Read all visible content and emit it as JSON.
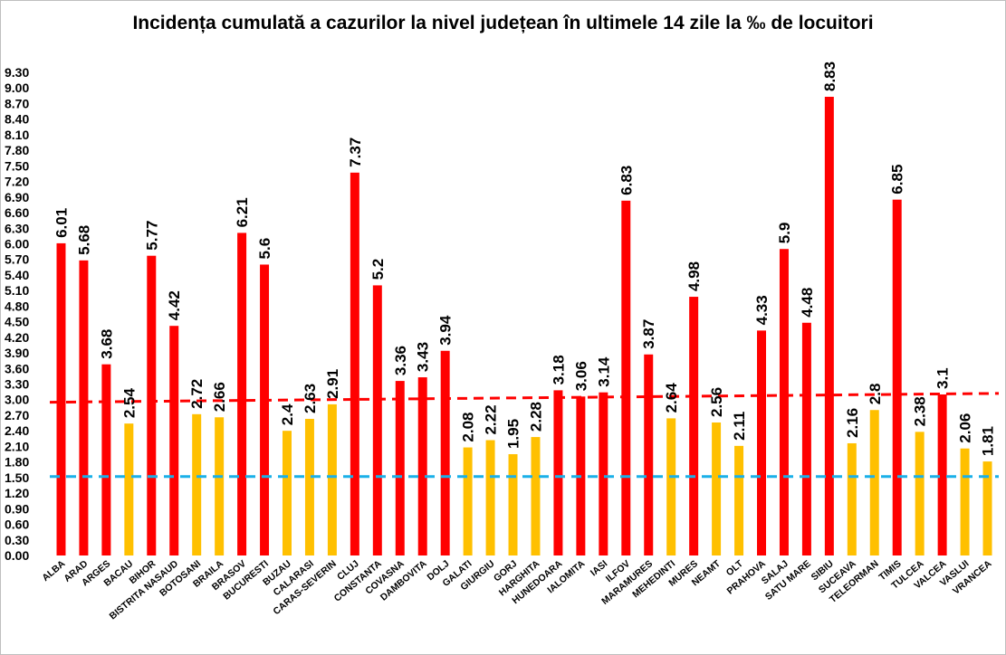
{
  "chart_data": {
    "type": "bar",
    "title": "Incidența cumulată a cazurilor la nivel județean în ultimele 14 zile la ‰ de locuitori",
    "xlabel": "",
    "ylabel": "",
    "ylim": [
      0,
      9.3
    ],
    "ytick_step": 0.3,
    "ytick_labels": [
      "0.00",
      "0.30",
      "0.60",
      "0.90",
      "1.20",
      "1.50",
      "1.80",
      "2.10",
      "2.40",
      "2.70",
      "3.00",
      "3.30",
      "3.60",
      "3.90",
      "4.20",
      "4.50",
      "4.80",
      "5.10",
      "5.40",
      "5.70",
      "6.00",
      "6.30",
      "6.60",
      "6.90",
      "7.20",
      "7.50",
      "7.80",
      "8.10",
      "8.40",
      "8.70",
      "9.00",
      "9.30"
    ],
    "grid": false,
    "legend": "none",
    "categories": [
      "ALBA",
      "ARAD",
      "ARGES",
      "BACAU",
      "BIHOR",
      "BISTRITA NASAUD",
      "BOTOSANI",
      "BRAILA",
      "BRASOV",
      "BUCURESTI",
      "BUZAU",
      "CALARASI",
      "CARAS-SEVERIN",
      "CLUJ",
      "CONSTANTA",
      "COVASNA",
      "DAMBOVITA",
      "DOLJ",
      "GALATI",
      "GIURGIU",
      "GORJ",
      "HARGHITA",
      "HUNEDOARA",
      "IALOMITA",
      "IASI",
      "ILFOV",
      "MARAMURES",
      "MEHEDINTI",
      "MURES",
      "NEAMT",
      "OLT",
      "PRAHOVA",
      "SALAJ",
      "SATU MARE",
      "SIBIU",
      "SUCEAVA",
      "TELEORMAN",
      "TIMIS",
      "TULCEA",
      "VALCEA",
      "VASLUI",
      "VRANCEA"
    ],
    "values": [
      6.01,
      5.68,
      3.68,
      2.54,
      5.77,
      4.42,
      2.72,
      2.66,
      6.21,
      5.6,
      2.4,
      2.63,
      2.91,
      7.37,
      5.2,
      3.36,
      3.43,
      3.94,
      2.08,
      2.22,
      1.95,
      2.28,
      3.18,
      3.06,
      3.14,
      6.83,
      3.87,
      2.64,
      4.98,
      2.56,
      2.11,
      4.33,
      5.9,
      4.48,
      8.83,
      2.16,
      2.8,
      6.85,
      2.38,
      3.1,
      2.06,
      1.81
    ],
    "data_labels": [
      "6.01",
      "5.68",
      "3.68",
      "2.54",
      "5.77",
      "4.42",
      "2.72",
      "2.66",
      "6.21",
      "5.6",
      "2.4",
      "2.63",
      "2.91",
      "7.37",
      "5.2",
      "3.36",
      "3.43",
      "3.94",
      "2.08",
      "2.22",
      "1.95",
      "2.28",
      "3.18",
      "3.06",
      "3.14",
      "6.83",
      "3.87",
      "2.64",
      "4.98",
      "2.56",
      "2.11",
      "4.33",
      "5.9",
      "4.48",
      "8.83",
      "2.16",
      "2.8",
      "6.85",
      "2.38",
      "3.1",
      "2.06",
      "1.81"
    ],
    "bar_colors": [
      "#ff0000",
      "#ff0000",
      "#ff0000",
      "#ffc000",
      "#ff0000",
      "#ff0000",
      "#ffc000",
      "#ffc000",
      "#ff0000",
      "#ff0000",
      "#ffc000",
      "#ffc000",
      "#ffc000",
      "#ff0000",
      "#ff0000",
      "#ff0000",
      "#ff0000",
      "#ff0000",
      "#ffc000",
      "#ffc000",
      "#ffc000",
      "#ffc000",
      "#ff0000",
      "#ff0000",
      "#ff0000",
      "#ff0000",
      "#ff0000",
      "#ffc000",
      "#ff0000",
      "#ffc000",
      "#ffc000",
      "#ff0000",
      "#ff0000",
      "#ff0000",
      "#ff0000",
      "#ffc000",
      "#ffc000",
      "#ff0000",
      "#ffc000",
      "#ff0000",
      "#ffc000",
      "#ffc000"
    ],
    "reference_lines": [
      {
        "color": "#ff0000",
        "style": "dashed",
        "y_start": 2.95,
        "y_end": 3.12
      },
      {
        "color": "#1ab0e8",
        "style": "dashed",
        "y_start": 1.52,
        "y_end": 1.52
      }
    ]
  }
}
